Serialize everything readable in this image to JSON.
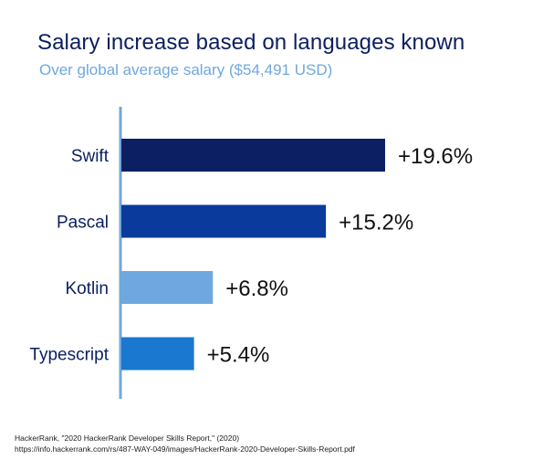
{
  "chart_data": {
    "type": "bar",
    "orientation": "horizontal",
    "title": "Salary increase based on languages known",
    "subtitle": "Over global average salary ($54,491 USD)",
    "categories": [
      "Swift",
      "Pascal",
      "Kotlin",
      "Typescript"
    ],
    "values": [
      19.6,
      15.2,
      6.8,
      5.4
    ],
    "value_labels": [
      "+19.6%",
      "+15.2%",
      "+6.8%",
      "+5.4%"
    ],
    "unit": "%",
    "colors": [
      "#0d1f63",
      "#0a3a9c",
      "#6fa8e0",
      "#1a78d0"
    ],
    "axis_color": "#6fa8dc",
    "grid": false,
    "legend": "none",
    "xlim": [
      0,
      19.6
    ]
  },
  "source": {
    "line1": "HackerRank, \"2020 HackerRank Developer Skills Report,\" (2020)",
    "line2": "https://info.hackerrank.com/rs/487-WAY-049/images/HackerRank-2020-Developer-Skills-Report.pdf"
  }
}
